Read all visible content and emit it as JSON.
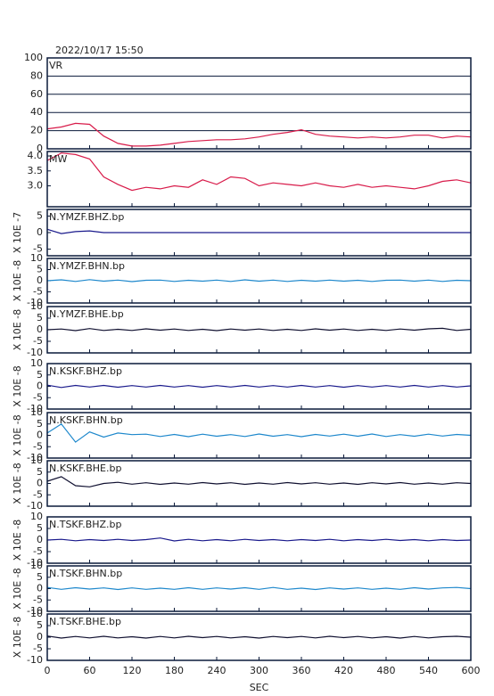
{
  "chart_data": [
    {
      "type": "line",
      "title": "2022/10/17 15:50",
      "label": "VR",
      "color": "#d81b4a",
      "grid": true,
      "xlim": [
        0,
        600
      ],
      "ylim": [
        0,
        100
      ],
      "yticks": [
        0,
        20,
        40,
        60,
        80,
        100
      ],
      "x": [
        0,
        20,
        40,
        60,
        80,
        100,
        120,
        140,
        160,
        180,
        200,
        220,
        240,
        260,
        280,
        300,
        320,
        340,
        360,
        380,
        400,
        420,
        440,
        460,
        480,
        500,
        520,
        540,
        560,
        580,
        600
      ],
      "values": [
        22,
        24,
        28,
        27,
        14,
        6,
        3,
        3,
        4,
        6,
        8,
        9,
        10,
        10,
        11,
        13,
        16,
        18,
        21,
        16,
        14,
        13,
        12,
        13,
        12,
        13,
        15,
        15,
        12,
        14,
        13
      ]
    },
    {
      "type": "line",
      "label": "MW",
      "color": "#d81b4a",
      "grid": false,
      "xlim": [
        0,
        600
      ],
      "ylim": [
        2.3,
        4.15
      ],
      "yticks": [
        {
          "value": 3,
          "label": "3.0"
        },
        {
          "value": 3.5,
          "label": "3.5"
        },
        {
          "value": 4,
          "label": "4.0"
        }
      ],
      "x": [
        0,
        20,
        40,
        60,
        80,
        100,
        120,
        140,
        160,
        180,
        200,
        220,
        240,
        260,
        280,
        300,
        320,
        340,
        360,
        380,
        400,
        420,
        440,
        460,
        480,
        500,
        520,
        540,
        560,
        580,
        600
      ],
      "values": [
        3.85,
        4.1,
        4.05,
        3.9,
        3.3,
        3.05,
        2.85,
        2.95,
        2.9,
        3.0,
        2.95,
        3.2,
        3.05,
        3.3,
        3.25,
        3.0,
        3.1,
        3.05,
        3.0,
        3.1,
        3.0,
        2.95,
        3.05,
        2.95,
        3.0,
        2.95,
        2.9,
        3.0,
        3.15,
        3.2,
        3.1
      ]
    },
    {
      "type": "line",
      "label": "N.YMZF.BHZ.bp",
      "ylabel": "X 10E -7",
      "color": "#1a1a8c",
      "xlim": [
        0,
        600
      ],
      "ylim": [
        -7,
        7
      ],
      "yticks": [
        -5,
        0,
        5
      ],
      "x": [
        0,
        20,
        40,
        60,
        80,
        100,
        120,
        140,
        160,
        180,
        200,
        220,
        240,
        260,
        280,
        300,
        320,
        340,
        360,
        380,
        400,
        420,
        440,
        460,
        480,
        500,
        520,
        540,
        560,
        580,
        600
      ],
      "values": [
        1,
        -0.3,
        0.3,
        0.5,
        0,
        0,
        0,
        0,
        0,
        0,
        0,
        0,
        0,
        0,
        0,
        0,
        0,
        0,
        0,
        0,
        0,
        0,
        0,
        0,
        0,
        0,
        0,
        0,
        0,
        0,
        0
      ]
    },
    {
      "type": "line",
      "label": "N.YMZF.BHN.bp",
      "ylabel": "X 10E -8",
      "color": "#1e88cc",
      "xlim": [
        0,
        600
      ],
      "ylim": [
        -10,
        10
      ],
      "yticks": [
        -10,
        -5,
        0,
        5,
        10
      ],
      "x": [
        0,
        20,
        40,
        60,
        80,
        100,
        120,
        140,
        160,
        180,
        200,
        220,
        240,
        260,
        280,
        300,
        320,
        340,
        360,
        380,
        400,
        420,
        440,
        460,
        480,
        500,
        520,
        540,
        560,
        580,
        600
      ],
      "values": [
        0,
        0.4,
        -0.3,
        0.5,
        -0.2,
        0.3,
        -0.4,
        0.2,
        0.3,
        -0.3,
        0.2,
        -0.2,
        0.3,
        -0.3,
        0.4,
        -0.2,
        0.3,
        -0.3,
        0.2,
        -0.2,
        0.3,
        -0.2,
        0.2,
        -0.3,
        0.2,
        0.3,
        -0.2,
        0.3,
        -0.3,
        0.2,
        0
      ]
    },
    {
      "type": "line",
      "label": "N.YMZF.BHE.bp",
      "ylabel": "X 10E -8",
      "color": "#101030",
      "xlim": [
        0,
        600
      ],
      "ylim": [
        -10,
        10
      ],
      "yticks": [
        -10,
        -5,
        0,
        5,
        10
      ],
      "x": [
        0,
        20,
        40,
        60,
        80,
        100,
        120,
        140,
        160,
        180,
        200,
        220,
        240,
        260,
        280,
        300,
        320,
        340,
        360,
        380,
        400,
        420,
        440,
        460,
        480,
        500,
        520,
        540,
        560,
        580,
        600
      ],
      "values": [
        0,
        0.3,
        -0.4,
        0.5,
        -0.3,
        0.2,
        -0.3,
        0.4,
        -0.2,
        0.3,
        -0.3,
        0.2,
        -0.4,
        0.3,
        -0.2,
        0.3,
        -0.3,
        0.2,
        -0.3,
        0.4,
        -0.2,
        0.3,
        -0.3,
        0.2,
        -0.3,
        0.3,
        -0.2,
        0.4,
        0.6,
        -0.3,
        0.2
      ]
    },
    {
      "type": "line",
      "label": "N.KSKF.BHZ.bp",
      "ylabel": "X 10E -8",
      "color": "#1a1a8c",
      "xlim": [
        0,
        600
      ],
      "ylim": [
        -10,
        10
      ],
      "yticks": [
        -10,
        -5,
        0,
        5,
        10
      ],
      "x": [
        0,
        20,
        40,
        60,
        80,
        100,
        120,
        140,
        160,
        180,
        200,
        220,
        240,
        260,
        280,
        300,
        320,
        340,
        360,
        380,
        400,
        420,
        440,
        460,
        480,
        500,
        520,
        540,
        560,
        580,
        600
      ],
      "values": [
        0.5,
        -0.5,
        0.4,
        -0.3,
        0.4,
        -0.4,
        0.3,
        -0.3,
        0.4,
        -0.3,
        0.3,
        -0.4,
        0.3,
        -0.3,
        0.4,
        -0.3,
        0.3,
        -0.3,
        0.4,
        -0.3,
        0.3,
        -0.4,
        0.3,
        -0.3,
        0.3,
        -0.3,
        0.4,
        -0.3,
        0.3,
        -0.3,
        0.2
      ]
    },
    {
      "type": "line",
      "label": "N.KSKF.BHN.bp",
      "ylabel": "X 10E -8",
      "color": "#1e88cc",
      "xlim": [
        0,
        600
      ],
      "ylim": [
        -10,
        10
      ],
      "yticks": [
        -10,
        -5,
        0,
        5,
        10
      ],
      "x": [
        0,
        20,
        40,
        60,
        80,
        100,
        120,
        140,
        160,
        180,
        200,
        220,
        240,
        260,
        280,
        300,
        320,
        340,
        360,
        380,
        400,
        420,
        440,
        460,
        480,
        500,
        520,
        540,
        560,
        580,
        600
      ],
      "values": [
        1,
        5,
        -3,
        1.5,
        -0.8,
        1,
        0.3,
        0.5,
        -0.5,
        0.4,
        -0.6,
        0.5,
        -0.4,
        0.3,
        -0.5,
        0.6,
        -0.4,
        0.3,
        -0.6,
        0.4,
        -0.3,
        0.5,
        -0.4,
        0.6,
        -0.5,
        0.3,
        -0.4,
        0.5,
        -0.3,
        0.4,
        0
      ]
    },
    {
      "type": "line",
      "label": "N.KSKF.BHE.bp",
      "ylabel": "X 10E -8",
      "color": "#101030",
      "xlim": [
        0,
        600
      ],
      "ylim": [
        -10,
        10
      ],
      "yticks": [
        -10,
        -5,
        0,
        5,
        10
      ],
      "x": [
        0,
        20,
        40,
        60,
        80,
        100,
        120,
        140,
        160,
        180,
        200,
        220,
        240,
        260,
        280,
        300,
        320,
        340,
        360,
        380,
        400,
        420,
        440,
        460,
        480,
        500,
        520,
        540,
        560,
        580,
        600
      ],
      "values": [
        1,
        3,
        -1,
        -1.5,
        0,
        0.5,
        -0.3,
        0.3,
        -0.4,
        0.2,
        -0.3,
        0.4,
        -0.2,
        0.3,
        -0.4,
        0.2,
        -0.3,
        0.4,
        -0.2,
        0.3,
        -0.3,
        0.2,
        -0.4,
        0.3,
        -0.2,
        0.4,
        -0.3,
        0.2,
        -0.3,
        0.3,
        0
      ]
    },
    {
      "type": "line",
      "label": "N.TSKF.BHZ.bp",
      "ylabel": "X 10E -8",
      "color": "#1a1a8c",
      "xlim": [
        0,
        600
      ],
      "ylim": [
        -10,
        10
      ],
      "yticks": [
        -10,
        -5,
        0,
        5,
        10
      ],
      "x": [
        0,
        20,
        40,
        60,
        80,
        100,
        120,
        140,
        160,
        180,
        200,
        220,
        240,
        260,
        280,
        300,
        320,
        340,
        360,
        380,
        400,
        420,
        440,
        460,
        480,
        500,
        520,
        540,
        560,
        580,
        600
      ],
      "values": [
        0,
        0.3,
        -0.3,
        0.2,
        -0.2,
        0.3,
        -0.2,
        0.2,
        0.9,
        -0.4,
        0.3,
        -0.3,
        0.2,
        -0.3,
        0.3,
        -0.2,
        0.2,
        -0.3,
        0.2,
        -0.2,
        0.3,
        -0.3,
        0.2,
        -0.2,
        0.3,
        -0.2,
        0.2,
        -0.3,
        0.2,
        -0.2,
        0
      ]
    },
    {
      "type": "line",
      "label": "N.TSKF.BHN.bp",
      "ylabel": "X 10E -8",
      "color": "#1e88cc",
      "xlim": [
        0,
        600
      ],
      "ylim": [
        -10,
        10
      ],
      "yticks": [
        -10,
        -5,
        0,
        5,
        10
      ],
      "x": [
        0,
        20,
        40,
        60,
        80,
        100,
        120,
        140,
        160,
        180,
        200,
        220,
        240,
        260,
        280,
        300,
        320,
        340,
        360,
        380,
        400,
        420,
        440,
        460,
        480,
        500,
        520,
        540,
        560,
        580,
        600
      ],
      "values": [
        0.5,
        -0.3,
        0.4,
        -0.2,
        0.3,
        -0.4,
        0.3,
        -0.3,
        0.2,
        -0.3,
        0.4,
        -0.3,
        0.3,
        -0.2,
        0.4,
        -0.3,
        0.5,
        -0.3,
        0.2,
        -0.4,
        0.3,
        -0.2,
        0.3,
        -0.3,
        0.2,
        -0.3,
        0.4,
        -0.2,
        0.3,
        0.5,
        0
      ]
    },
    {
      "type": "line",
      "label": "N.TSKF.BHE.bp",
      "ylabel": "X 10E -8",
      "color": "#101030",
      "xlabel": "SEC",
      "xlim": [
        0,
        600
      ],
      "ylim": [
        -10,
        10
      ],
      "yticks": [
        -10,
        -5,
        0,
        5,
        10
      ],
      "xticks": [
        0,
        60,
        120,
        180,
        240,
        300,
        360,
        420,
        480,
        540,
        600
      ],
      "x": [
        0,
        20,
        40,
        60,
        80,
        100,
        120,
        140,
        160,
        180,
        200,
        220,
        240,
        260,
        280,
        300,
        320,
        340,
        360,
        380,
        400,
        420,
        440,
        460,
        480,
        500,
        520,
        540,
        560,
        580,
        600
      ],
      "values": [
        0.5,
        -0.4,
        0.3,
        -0.3,
        0.4,
        -0.3,
        0.2,
        -0.4,
        0.3,
        -0.3,
        0.4,
        -0.2,
        0.3,
        -0.3,
        0.2,
        -0.4,
        0.3,
        -0.2,
        0.3,
        -0.3,
        0.4,
        -0.2,
        0.3,
        -0.3,
        0.2,
        -0.4,
        0.3,
        -0.3,
        0.2,
        0.4,
        0
      ]
    }
  ]
}
